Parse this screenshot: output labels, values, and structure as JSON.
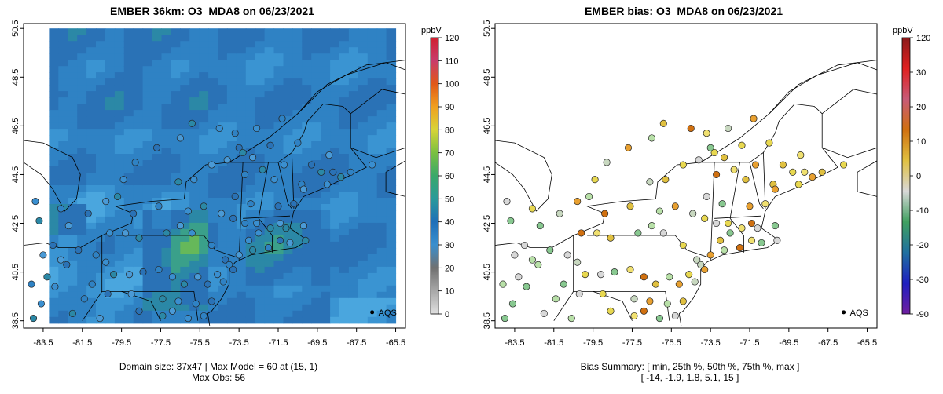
{
  "left_panel": {
    "title": "EMBER 36km: O3_MDA8 on 06/23/2021",
    "footer_line1": "Domain size: 37x47 | Max Model = 60 at (15, 1)",
    "footer_line2": "Max Obs: 56",
    "colorbar": {
      "unit": "ppbV",
      "ticks": [
        "0",
        "10",
        "20",
        "30",
        "40",
        "50",
        "60",
        "70",
        "80",
        "90",
        "100",
        "110",
        "120"
      ],
      "colors": [
        "#e0e0e0",
        "#a8a8a8",
        "#707070",
        "#3a8fce",
        "#1f6fb8",
        "#2a9a9a",
        "#3aa86a",
        "#7ac040",
        "#d8d438",
        "#f0a020",
        "#e05818",
        "#c83c6c",
        "#d02030"
      ]
    },
    "legend_label": "AQS"
  },
  "right_panel": {
    "title": "EMBER bias: O3_MDA8 on 06/23/2021",
    "footer_line1": "Bias Summary: [ min, 25th %, 50th %, 75th %, max ]",
    "footer_line2": "[ -14,   -1.9,   1.8,   5.1,   15 ]",
    "colorbar": {
      "unit": "ppbV",
      "ticks": [
        "120",
        "30",
        "20",
        "10",
        "0",
        "-10",
        "-20",
        "-30",
        "-90"
      ],
      "colors": [
        "#8b1a1a",
        "#e02020",
        "#c85a78",
        "#d07010",
        "#e0c040",
        "#d8d8d8",
        "#40a060",
        "#2070a0",
        "#2020c0",
        "#7020a0"
      ]
    },
    "legend_label": "AQS"
  },
  "map": {
    "x_ticks": [
      "-83.5",
      "-81.5",
      "-79.5",
      "-77.5",
      "-75.5",
      "-73.5",
      "-71.5",
      "-69.5",
      "-67.5",
      "-65.5"
    ],
    "y_ticks": [
      "38.5",
      "40.5",
      "42.5",
      "44.5",
      "46.5",
      "48.5",
      "50.5"
    ],
    "x_range": [
      -84.5,
      -65.0
    ],
    "y_range": [
      38.2,
      50.7
    ]
  },
  "colors": {
    "ocean_model": "#3a8fd0",
    "land_model": "#2876b8",
    "map_line": "#000000"
  }
}
